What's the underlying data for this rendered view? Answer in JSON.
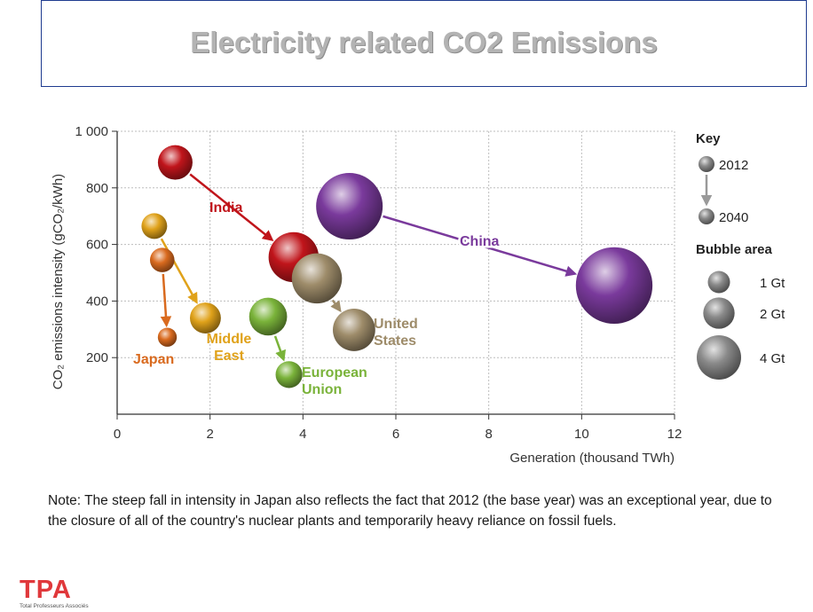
{
  "title": "Electricity related CO2 Emissions",
  "note_lines": [
    "Note: The steep fall in intensity in Japan also reflects the fact that 2012 (the base year) was an exceptional year, due to",
    "the closure of all of the country's nuclear plants and temporarily heavy reliance on fossil fuels."
  ],
  "logo": {
    "mark": "TPA",
    "subtitle": "Total Professeurs Associés"
  },
  "chart_data": {
    "type": "scatter",
    "xlabel": "Generation (thousand TWh)",
    "ylabel": "CO₂ emissions intensity (gCO₂/kWh)",
    "xlim": [
      0,
      12
    ],
    "ylim": [
      0,
      1000
    ],
    "xticks": [
      0,
      2,
      4,
      6,
      8,
      10,
      12
    ],
    "xtick_labels": [
      "0",
      "2",
      "4",
      "6",
      "8",
      "10",
      "12"
    ],
    "yticks": [
      200,
      400,
      600,
      800,
      1000
    ],
    "ytick_labels": [
      "200",
      "400",
      "600",
      "800",
      "1 000"
    ],
    "grid": true,
    "series": [
      {
        "name": "India",
        "label_lines": [
          "India"
        ],
        "color": "#c0151b",
        "points": [
          {
            "year": "2012",
            "x": 1.25,
            "y": 890,
            "gt": 1.0
          },
          {
            "year": "2040",
            "x": 3.8,
            "y": 555,
            "gt": 2.1
          }
        ]
      },
      {
        "name": "China",
        "label_lines": [
          "China"
        ],
        "color": "#7a3a9c",
        "points": [
          {
            "year": "2012",
            "x": 5.0,
            "y": 735,
            "gt": 3.7
          },
          {
            "year": "2040",
            "x": 10.7,
            "y": 455,
            "gt": 4.9
          }
        ]
      },
      {
        "name": "United States",
        "label_lines": [
          "United",
          "States"
        ],
        "color": "#9e8c6a",
        "points": [
          {
            "year": "2012",
            "x": 4.3,
            "y": 480,
            "gt": 2.1
          },
          {
            "year": "2040",
            "x": 5.1,
            "y": 298,
            "gt": 1.5
          }
        ]
      },
      {
        "name": "European Union",
        "label_lines": [
          "European",
          "Union"
        ],
        "color": "#7ab33a",
        "points": [
          {
            "year": "2012",
            "x": 3.25,
            "y": 345,
            "gt": 1.2
          },
          {
            "year": "2040",
            "x": 3.7,
            "y": 140,
            "gt": 0.6
          }
        ]
      },
      {
        "name": "Middle East",
        "label_lines": [
          "Middle",
          "East"
        ],
        "color": "#e0a21a",
        "points": [
          {
            "year": "2012",
            "x": 0.8,
            "y": 665,
            "gt": 0.55
          },
          {
            "year": "2040",
            "x": 1.9,
            "y": 340,
            "gt": 0.8
          }
        ]
      },
      {
        "name": "Japan",
        "label_lines": [
          "Japan"
        ],
        "color": "#d96a1e",
        "points": [
          {
            "year": "2012",
            "x": 0.97,
            "y": 545,
            "gt": 0.5
          },
          {
            "year": "2040",
            "x": 1.08,
            "y": 272,
            "gt": 0.3
          }
        ]
      }
    ],
    "legend": {
      "position": "right",
      "key_title": "Key",
      "key_items": [
        "2012",
        "2040"
      ],
      "area_title": "Bubble area",
      "area_items": [
        {
          "label": "1 Gt",
          "gt": 1
        },
        {
          "label": "2 Gt",
          "gt": 2
        },
        {
          "label": "4 Gt",
          "gt": 4
        }
      ]
    }
  }
}
